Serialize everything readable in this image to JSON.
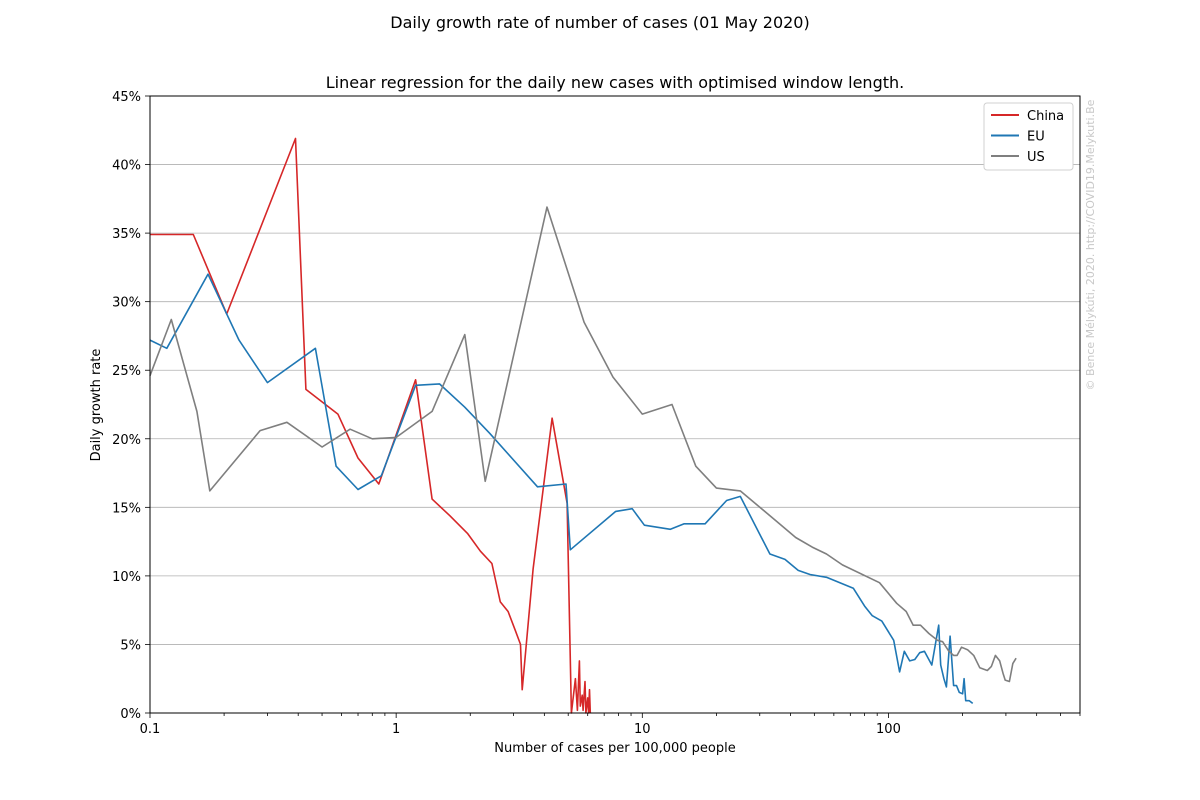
{
  "chart_data": {
    "type": "line",
    "title": "Daily growth rate of number of cases (01 May 2020)",
    "subtitle": "Linear regression for the daily new cases with optimised window length.",
    "xlabel": "Number of cases per 100,000 people",
    "ylabel": "Daily growth rate",
    "xscale": "log",
    "xlim": [
      0.1,
      600
    ],
    "ylim": [
      0,
      45
    ],
    "x_ticks": [
      0.1,
      1,
      10,
      100
    ],
    "x_tick_labels": [
      "0.1",
      "1",
      "10",
      "100"
    ],
    "y_ticks": [
      0,
      5,
      10,
      15,
      20,
      25,
      30,
      35,
      40,
      45
    ],
    "y_tick_labels": [
      "0%",
      "5%",
      "10%",
      "15%",
      "20%",
      "25%",
      "30%",
      "35%",
      "40%",
      "45%"
    ],
    "grid": "horizontal",
    "legend_position": "top-right",
    "watermark": "© Bence Mélykúti, 2020. http://COVID19.Melykuti.Be",
    "series": [
      {
        "name": "China",
        "color": "#d62728",
        "points": [
          [
            0.1,
            34.9
          ],
          [
            0.15,
            34.9
          ],
          [
            0.205,
            29.1
          ],
          [
            0.39,
            41.9
          ],
          [
            0.43,
            23.6
          ],
          [
            0.58,
            21.8
          ],
          [
            0.7,
            18.6
          ],
          [
            0.85,
            16.7
          ],
          [
            1.2,
            24.3
          ],
          [
            1.4,
            15.6
          ],
          [
            1.65,
            14.4
          ],
          [
            1.95,
            13.1
          ],
          [
            2.2,
            11.8
          ],
          [
            2.45,
            10.9
          ],
          [
            2.65,
            8.1
          ],
          [
            2.85,
            7.4
          ],
          [
            3.05,
            6.0
          ],
          [
            3.2,
            5.0
          ],
          [
            3.25,
            1.7
          ],
          [
            3.6,
            10.5
          ],
          [
            4.3,
            21.5
          ],
          [
            4.95,
            15.3
          ],
          [
            5.15,
            0
          ],
          [
            5.35,
            2.5
          ],
          [
            5.45,
            0.2
          ],
          [
            5.55,
            3.8
          ],
          [
            5.6,
            0.5
          ],
          [
            5.7,
            1.3
          ],
          [
            5.75,
            0.2
          ],
          [
            5.85,
            2.3
          ],
          [
            5.9,
            0
          ],
          [
            6.0,
            1.1
          ],
          [
            6.05,
            0
          ],
          [
            6.1,
            1.7
          ],
          [
            6.15,
            0
          ]
        ]
      },
      {
        "name": "EU",
        "color": "#1f77b4",
        "points": [
          [
            0.1,
            27.2
          ],
          [
            0.117,
            26.6
          ],
          [
            0.172,
            32.0
          ],
          [
            0.23,
            27.2
          ],
          [
            0.3,
            24.1
          ],
          [
            0.47,
            26.6
          ],
          [
            0.57,
            18.0
          ],
          [
            0.7,
            16.3
          ],
          [
            0.87,
            17.3
          ],
          [
            1.2,
            23.9
          ],
          [
            1.5,
            24.0
          ],
          [
            1.9,
            22.3
          ],
          [
            2.4,
            20.4
          ],
          [
            3.75,
            16.5
          ],
          [
            4.9,
            16.7
          ],
          [
            5.1,
            11.9
          ],
          [
            7.8,
            14.7
          ],
          [
            9.1,
            14.9
          ],
          [
            10.2,
            13.7
          ],
          [
            13.0,
            13.4
          ],
          [
            14.8,
            13.8
          ],
          [
            18.0,
            13.8
          ],
          [
            22.0,
            15.5
          ],
          [
            25.0,
            15.8
          ],
          [
            33.0,
            11.6
          ],
          [
            38.0,
            11.2
          ],
          [
            43.0,
            10.4
          ],
          [
            48.0,
            10.1
          ],
          [
            56.0,
            9.9
          ],
          [
            72.0,
            9.1
          ],
          [
            80.0,
            7.8
          ],
          [
            86.0,
            7.1
          ],
          [
            94.0,
            6.7
          ],
          [
            105.0,
            5.3
          ],
          [
            111.0,
            3.0
          ],
          [
            116.0,
            4.5
          ],
          [
            122.0,
            3.8
          ],
          [
            128.0,
            3.9
          ],
          [
            134.0,
            4.4
          ],
          [
            140.0,
            4.5
          ],
          [
            150.0,
            3.5
          ],
          [
            160.0,
            6.4
          ],
          [
            163.0,
            3.5
          ],
          [
            168.0,
            2.5
          ],
          [
            172.0,
            1.9
          ],
          [
            178.0,
            5.6
          ],
          [
            184.0,
            2.0
          ],
          [
            189.0,
            2.0
          ],
          [
            194.0,
            1.5
          ],
          [
            200.0,
            1.4
          ],
          [
            203.0,
            2.5
          ],
          [
            206.0,
            0.9
          ],
          [
            213.0,
            0.9
          ],
          [
            220.0,
            0.7
          ]
        ]
      },
      {
        "name": "US",
        "color": "#7f7f7f",
        "points": [
          [
            0.1,
            24.6
          ],
          [
            0.122,
            28.7
          ],
          [
            0.155,
            22.0
          ],
          [
            0.175,
            16.2
          ],
          [
            0.28,
            20.6
          ],
          [
            0.36,
            21.2
          ],
          [
            0.5,
            19.4
          ],
          [
            0.65,
            20.7
          ],
          [
            0.8,
            20.0
          ],
          [
            1.0,
            20.1
          ],
          [
            1.4,
            22.0
          ],
          [
            1.9,
            27.6
          ],
          [
            2.3,
            16.9
          ],
          [
            4.1,
            36.9
          ],
          [
            5.8,
            28.5
          ],
          [
            7.6,
            24.5
          ],
          [
            10.0,
            21.8
          ],
          [
            13.2,
            22.5
          ],
          [
            16.5,
            18.0
          ],
          [
            20.0,
            16.4
          ],
          [
            25.0,
            16.2
          ],
          [
            35.0,
            14.0
          ],
          [
            42.0,
            12.8
          ],
          [
            49.0,
            12.1
          ],
          [
            56.0,
            11.6
          ],
          [
            65.0,
            10.8
          ],
          [
            92.0,
            9.5
          ],
          [
            108.0,
            8.0
          ],
          [
            118.0,
            7.4
          ],
          [
            126.0,
            6.4
          ],
          [
            135.0,
            6.4
          ],
          [
            146.0,
            5.8
          ],
          [
            158.0,
            5.3
          ],
          [
            166.0,
            5.2
          ],
          [
            176.0,
            4.5
          ],
          [
            184.0,
            4.2
          ],
          [
            190.0,
            4.2
          ],
          [
            198.0,
            4.8
          ],
          [
            210.0,
            4.6
          ],
          [
            222.0,
            4.2
          ],
          [
            235.0,
            3.3
          ],
          [
            252.0,
            3.1
          ],
          [
            262.0,
            3.4
          ],
          [
            272.0,
            4.2
          ],
          [
            283.0,
            3.8
          ],
          [
            292.0,
            2.9
          ],
          [
            298.0,
            2.4
          ],
          [
            310.0,
            2.3
          ],
          [
            320.0,
            3.6
          ],
          [
            330.0,
            4.0
          ]
        ]
      }
    ]
  }
}
